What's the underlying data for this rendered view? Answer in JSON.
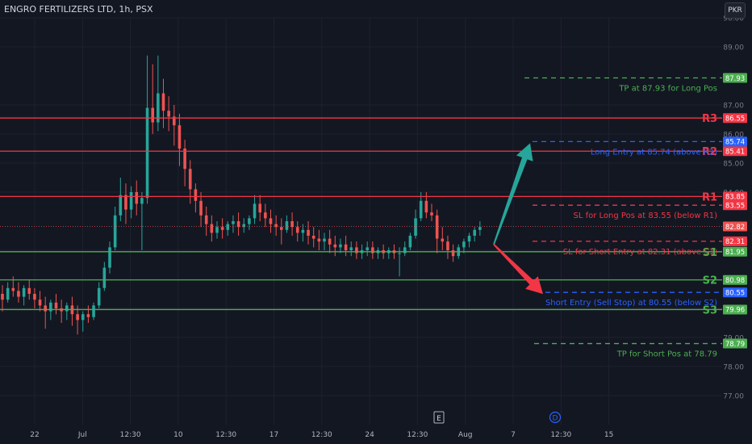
{
  "header": {
    "title": "ENGRO FERTILIZERS LTD, 1h, PSX"
  },
  "currency_button": {
    "label": "PKR"
  },
  "colors": {
    "background": "#131722",
    "up": "#26a69a",
    "down": "#ef5350",
    "resistance": "#f23645",
    "support": "#4caf50",
    "long_entry": "#2962ff",
    "take_profit": "#4caf50",
    "stop_loss": "#f23645"
  },
  "chart_data": {
    "type": "candlestick",
    "ylim": [
      76.0,
      90.0
    ],
    "y_ticks": [
      "77.00",
      "78.00",
      "79.00",
      "80.00",
      "81.00",
      "82.00",
      "84.00",
      "85.00",
      "86.00",
      "87.00",
      "89.00",
      "90.00"
    ],
    "x_ticks": [
      "22",
      "Jul",
      "12:30",
      "10",
      "12:30",
      "17",
      "12:30",
      "24",
      "12:30",
      "Aug",
      "7",
      "12:30",
      "15"
    ],
    "x_markers": [
      {
        "label": "E",
        "style": "earnings"
      },
      {
        "label": "D",
        "style": "dividend"
      }
    ],
    "levels": [
      {
        "name": "R3",
        "price": 86.55,
        "label": "86.55",
        "kind": "resistance"
      },
      {
        "name": "R2",
        "price": 85.41,
        "label": "85.41",
        "kind": "resistance"
      },
      {
        "name": "R1",
        "price": 83.85,
        "label": "83.85",
        "kind": "resistance"
      },
      {
        "name": "S1",
        "price": 81.95,
        "label": "81.95",
        "kind": "support"
      },
      {
        "name": "S2",
        "price": 80.98,
        "label": "80.98",
        "kind": "support"
      },
      {
        "name": "S3",
        "price": 79.96,
        "label": "79.96",
        "kind": "support"
      }
    ],
    "trade_levels": [
      {
        "price": 87.93,
        "label": "87.93",
        "text": "TP at 87.93 for Long Pos",
        "kind": "take_profit"
      },
      {
        "price": 85.74,
        "label": "85.74",
        "text": "Long Entry at 85.74 (above R2)",
        "kind": "long_entry"
      },
      {
        "price": 83.55,
        "label": "83.55",
        "text": "SL for Long Pos at 83.55 (below R1)",
        "kind": "stop_loss"
      },
      {
        "price": 82.31,
        "label": "82.31",
        "text": "SL for Short Entry at 82.31 (above S1)",
        "kind": "stop_loss"
      },
      {
        "price": 80.55,
        "label": "80.55",
        "text": "Short Entry (Sell Stop) at 80.55 (below S2)",
        "kind": "short_entry"
      },
      {
        "price": 78.79,
        "label": "78.79",
        "text": "TP for Short Pos at 78.79",
        "kind": "take_profit"
      }
    ],
    "last_price": {
      "price": 82.82,
      "label": "82.82"
    },
    "arrows": [
      {
        "direction": "up",
        "from_price": 82.2,
        "to_price": 85.74
      },
      {
        "direction": "down",
        "from_price": 82.2,
        "to_price": 80.55
      }
    ],
    "series": [
      {
        "o": 80.5,
        "h": 80.8,
        "c": 80.3,
        "l": 79.9
      },
      {
        "o": 80.3,
        "h": 80.9,
        "c": 80.7,
        "l": 80.2
      },
      {
        "o": 80.7,
        "h": 81.1,
        "c": 80.6,
        "l": 80.4
      },
      {
        "o": 80.6,
        "h": 80.9,
        "c": 80.4,
        "l": 80.2
      },
      {
        "o": 80.4,
        "h": 80.8,
        "c": 80.7,
        "l": 80.1
      },
      {
        "o": 80.7,
        "h": 81.0,
        "c": 80.5,
        "l": 80.3
      },
      {
        "o": 80.5,
        "h": 80.7,
        "c": 80.3,
        "l": 80.0
      },
      {
        "o": 80.3,
        "h": 80.6,
        "c": 80.1,
        "l": 79.9
      },
      {
        "o": 80.1,
        "h": 80.4,
        "c": 79.9,
        "l": 79.3
      },
      {
        "o": 79.9,
        "h": 80.3,
        "c": 80.2,
        "l": 79.6
      },
      {
        "o": 80.2,
        "h": 80.5,
        "c": 80.0,
        "l": 79.8
      },
      {
        "o": 80.0,
        "h": 80.3,
        "c": 79.9,
        "l": 79.5
      },
      {
        "o": 79.9,
        "h": 80.2,
        "c": 80.1,
        "l": 79.6
      },
      {
        "o": 80.1,
        "h": 80.4,
        "c": 79.8,
        "l": 79.4
      },
      {
        "o": 79.8,
        "h": 80.1,
        "c": 79.6,
        "l": 79.1
      },
      {
        "o": 79.6,
        "h": 79.9,
        "c": 79.8,
        "l": 79.2
      },
      {
        "o": 79.8,
        "h": 80.1,
        "c": 79.7,
        "l": 79.5
      },
      {
        "o": 79.7,
        "h": 80.2,
        "c": 80.1,
        "l": 79.6
      },
      {
        "o": 80.1,
        "h": 80.9,
        "c": 80.7,
        "l": 80.0
      },
      {
        "o": 80.7,
        "h": 81.6,
        "c": 81.4,
        "l": 80.6
      },
      {
        "o": 81.4,
        "h": 82.3,
        "c": 82.1,
        "l": 81.2
      },
      {
        "o": 82.1,
        "h": 83.5,
        "c": 83.2,
        "l": 82.0
      },
      {
        "o": 83.2,
        "h": 84.5,
        "c": 83.9,
        "l": 83.0
      },
      {
        "o": 83.9,
        "h": 84.3,
        "c": 83.4,
        "l": 82.9
      },
      {
        "o": 83.4,
        "h": 84.2,
        "c": 84.0,
        "l": 83.1
      },
      {
        "o": 84.0,
        "h": 84.4,
        "c": 83.6,
        "l": 83.2
      },
      {
        "o": 83.6,
        "h": 84.0,
        "c": 83.8,
        "l": 82.0
      },
      {
        "o": 83.8,
        "h": 88.7,
        "c": 86.9,
        "l": 83.6
      },
      {
        "o": 86.9,
        "h": 88.4,
        "c": 86.4,
        "l": 86.0
      },
      {
        "o": 86.4,
        "h": 88.7,
        "c": 87.4,
        "l": 86.1
      },
      {
        "o": 87.4,
        "h": 87.9,
        "c": 86.8,
        "l": 86.2
      },
      {
        "o": 86.8,
        "h": 87.3,
        "c": 86.6,
        "l": 86.1
      },
      {
        "o": 86.6,
        "h": 87.0,
        "c": 86.3,
        "l": 85.6
      },
      {
        "o": 86.3,
        "h": 86.7,
        "c": 85.5,
        "l": 84.9
      },
      {
        "o": 85.5,
        "h": 85.8,
        "c": 84.8,
        "l": 84.2
      },
      {
        "o": 84.8,
        "h": 85.1,
        "c": 84.1,
        "l": 83.6
      },
      {
        "o": 84.1,
        "h": 84.3,
        "c": 83.7,
        "l": 83.3
      },
      {
        "o": 83.7,
        "h": 84.0,
        "c": 83.2,
        "l": 82.8
      },
      {
        "o": 83.2,
        "h": 83.5,
        "c": 82.9,
        "l": 82.5
      },
      {
        "o": 82.9,
        "h": 83.2,
        "c": 82.6,
        "l": 82.3
      },
      {
        "o": 82.6,
        "h": 83.0,
        "c": 82.8,
        "l": 82.4
      },
      {
        "o": 82.8,
        "h": 83.1,
        "c": 82.7,
        "l": 82.4
      },
      {
        "o": 82.7,
        "h": 83.0,
        "c": 82.9,
        "l": 82.5
      },
      {
        "o": 82.9,
        "h": 83.2,
        "c": 83.0,
        "l": 82.6
      },
      {
        "o": 83.0,
        "h": 83.3,
        "c": 82.8,
        "l": 82.5
      },
      {
        "o": 82.8,
        "h": 83.1,
        "c": 82.9,
        "l": 82.6
      },
      {
        "o": 82.9,
        "h": 83.2,
        "c": 83.1,
        "l": 82.7
      },
      {
        "o": 83.1,
        "h": 83.9,
        "c": 83.6,
        "l": 82.9
      },
      {
        "o": 83.6,
        "h": 83.9,
        "c": 83.3,
        "l": 83.0
      },
      {
        "o": 83.3,
        "h": 83.6,
        "c": 83.1,
        "l": 82.8
      },
      {
        "o": 83.1,
        "h": 83.4,
        "c": 82.9,
        "l": 82.6
      },
      {
        "o": 82.9,
        "h": 83.2,
        "c": 82.8,
        "l": 82.5
      },
      {
        "o": 82.8,
        "h": 83.1,
        "c": 82.7,
        "l": 82.2
      },
      {
        "o": 82.7,
        "h": 83.2,
        "c": 83.0,
        "l": 82.6
      },
      {
        "o": 83.0,
        "h": 83.3,
        "c": 82.8,
        "l": 82.5
      },
      {
        "o": 82.8,
        "h": 83.0,
        "c": 82.6,
        "l": 82.3
      },
      {
        "o": 82.6,
        "h": 82.9,
        "c": 82.7,
        "l": 82.3
      },
      {
        "o": 82.7,
        "h": 83.0,
        "c": 82.5,
        "l": 82.2
      },
      {
        "o": 82.5,
        "h": 82.8,
        "c": 82.4,
        "l": 82.1
      },
      {
        "o": 82.4,
        "h": 82.7,
        "c": 82.3,
        "l": 82.0
      },
      {
        "o": 82.3,
        "h": 82.6,
        "c": 82.4,
        "l": 82.0
      },
      {
        "o": 82.4,
        "h": 82.7,
        "c": 82.2,
        "l": 81.9
      },
      {
        "o": 82.2,
        "h": 82.5,
        "c": 82.1,
        "l": 81.8
      },
      {
        "o": 82.1,
        "h": 82.4,
        "c": 82.2,
        "l": 81.9
      },
      {
        "o": 82.2,
        "h": 82.5,
        "c": 82.0,
        "l": 81.8
      },
      {
        "o": 82.0,
        "h": 82.3,
        "c": 82.1,
        "l": 81.8
      },
      {
        "o": 82.1,
        "h": 82.3,
        "c": 81.9,
        "l": 81.7
      },
      {
        "o": 81.9,
        "h": 82.2,
        "c": 82.0,
        "l": 81.7
      },
      {
        "o": 82.0,
        "h": 82.3,
        "c": 82.1,
        "l": 81.8
      },
      {
        "o": 82.1,
        "h": 82.3,
        "c": 81.9,
        "l": 81.7
      },
      {
        "o": 81.9,
        "h": 82.1,
        "c": 82.0,
        "l": 81.7
      },
      {
        "o": 82.0,
        "h": 82.2,
        "c": 81.9,
        "l": 81.7
      },
      {
        "o": 81.9,
        "h": 82.1,
        "c": 82.0,
        "l": 81.7
      },
      {
        "o": 82.0,
        "h": 82.2,
        "c": 81.9,
        "l": 81.7
      },
      {
        "o": 81.9,
        "h": 82.1,
        "c": 81.9,
        "l": 81.1
      },
      {
        "o": 81.9,
        "h": 82.3,
        "c": 82.1,
        "l": 81.8
      },
      {
        "o": 82.1,
        "h": 82.6,
        "c": 82.5,
        "l": 82.0
      },
      {
        "o": 82.5,
        "h": 83.4,
        "c": 83.1,
        "l": 82.4
      },
      {
        "o": 83.1,
        "h": 84.0,
        "c": 83.7,
        "l": 83.0
      },
      {
        "o": 83.7,
        "h": 84.0,
        "c": 83.3,
        "l": 83.1
      },
      {
        "o": 83.3,
        "h": 83.6,
        "c": 83.2,
        "l": 83.0
      },
      {
        "o": 83.2,
        "h": 83.4,
        "c": 82.4,
        "l": 81.9
      },
      {
        "o": 82.4,
        "h": 82.8,
        "c": 82.3,
        "l": 82.0
      },
      {
        "o": 82.3,
        "h": 82.5,
        "c": 82.0,
        "l": 81.7
      },
      {
        "o": 82.0,
        "h": 82.2,
        "c": 81.8,
        "l": 81.6
      },
      {
        "o": 81.8,
        "h": 82.2,
        "c": 82.1,
        "l": 81.7
      },
      {
        "o": 82.1,
        "h": 82.4,
        "c": 82.3,
        "l": 81.9
      },
      {
        "o": 82.3,
        "h": 82.6,
        "c": 82.5,
        "l": 82.1
      },
      {
        "o": 82.5,
        "h": 82.8,
        "c": 82.7,
        "l": 82.3
      },
      {
        "o": 82.7,
        "h": 83.0,
        "c": 82.8,
        "l": 82.5
      }
    ]
  }
}
